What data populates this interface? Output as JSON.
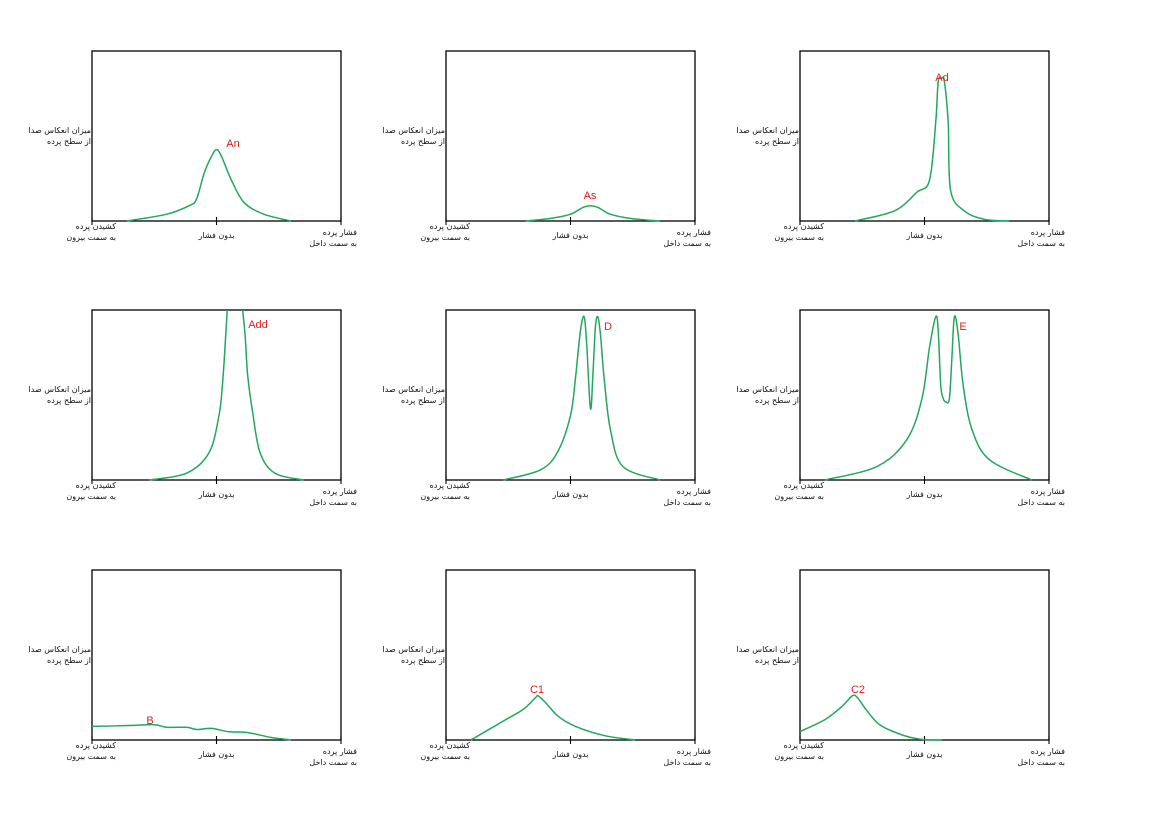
{
  "labels": {
    "y_axis": [
      "میزان انعکاس صدا",
      "از سطح پرده"
    ],
    "x_left": [
      "کشیدن پرده",
      "به سمت بیرون"
    ],
    "x_center": "بدون فشار",
    "x_right": [
      "فشار پرده",
      "به سمت داخل"
    ]
  },
  "colors": {
    "curve": "#22a85c",
    "label": "#e0201c",
    "frame": "#000000",
    "text": "#111111"
  },
  "panels": [
    {
      "peak_label": "An",
      "curve": [
        [
          0.14,
          0
        ],
        [
          0.3,
          0.04
        ],
        [
          0.39,
          0.09
        ],
        [
          0.42,
          0.13
        ],
        [
          0.45,
          0.28
        ],
        [
          0.48,
          0.38
        ],
        [
          0.5,
          0.42
        ],
        [
          0.52,
          0.38
        ],
        [
          0.56,
          0.24
        ],
        [
          0.61,
          0.11
        ],
        [
          0.69,
          0.04
        ],
        [
          0.8,
          0
        ]
      ]
    },
    {
      "peak_label": "As",
      "curve": [
        [
          0.32,
          0
        ],
        [
          0.42,
          0.015
        ],
        [
          0.5,
          0.04
        ],
        [
          0.55,
          0.08
        ],
        [
          0.58,
          0.09
        ],
        [
          0.61,
          0.08
        ],
        [
          0.66,
          0.04
        ],
        [
          0.74,
          0.015
        ],
        [
          0.86,
          0
        ]
      ]
    },
    {
      "peak_label": "Ad",
      "curve": [
        [
          0.22,
          0
        ],
        [
          0.38,
          0.06
        ],
        [
          0.47,
          0.17
        ],
        [
          0.52,
          0.24
        ],
        [
          0.545,
          0.58
        ],
        [
          0.555,
          0.82
        ],
        [
          0.57,
          0.84
        ],
        [
          0.58,
          0.82
        ],
        [
          0.595,
          0.58
        ],
        [
          0.605,
          0.18
        ],
        [
          0.66,
          0.06
        ],
        [
          0.74,
          0.01
        ],
        [
          0.84,
          0
        ]
      ]
    },
    {
      "peak_label": "Add",
      "curve": [
        [
          0.23,
          0
        ],
        [
          0.38,
          0.04
        ],
        [
          0.47,
          0.16
        ],
        [
          0.51,
          0.38
        ],
        [
          0.525,
          0.58
        ],
        [
          0.537,
          0.85
        ],
        [
          0.543,
          1
        ]
      ],
      "curve2": [
        [
          0.605,
          1
        ],
        [
          0.615,
          0.85
        ],
        [
          0.625,
          0.62
        ],
        [
          0.645,
          0.4
        ],
        [
          0.675,
          0.16
        ],
        [
          0.735,
          0.04
        ],
        [
          0.85,
          0
        ]
      ]
    },
    {
      "peak_label": "D",
      "curve": [
        [
          0.23,
          0
        ],
        [
          0.38,
          0.06
        ],
        [
          0.45,
          0.17
        ],
        [
          0.5,
          0.38
        ],
        [
          0.52,
          0.6
        ],
        [
          0.54,
          0.88
        ],
        [
          0.555,
          0.96
        ],
        [
          0.565,
          0.8
        ],
        [
          0.58,
          0.42
        ],
        [
          0.59,
          0.62
        ],
        [
          0.6,
          0.9
        ],
        [
          0.61,
          0.96
        ],
        [
          0.62,
          0.86
        ],
        [
          0.635,
          0.6
        ],
        [
          0.66,
          0.3
        ],
        [
          0.71,
          0.08
        ],
        [
          0.86,
          0
        ]
      ]
    },
    {
      "peak_label": "E",
      "curve": [
        [
          0.1,
          0
        ],
        [
          0.31,
          0.08
        ],
        [
          0.43,
          0.24
        ],
        [
          0.49,
          0.48
        ],
        [
          0.52,
          0.78
        ],
        [
          0.545,
          0.96
        ],
        [
          0.555,
          0.88
        ],
        [
          0.565,
          0.56
        ],
        [
          0.575,
          0.48
        ],
        [
          0.585,
          0.46
        ],
        [
          0.6,
          0.48
        ],
        [
          0.61,
          0.72
        ],
        [
          0.62,
          0.96
        ],
        [
          0.635,
          0.86
        ],
        [
          0.655,
          0.56
        ],
        [
          0.69,
          0.3
        ],
        [
          0.76,
          0.12
        ],
        [
          0.93,
          0
        ]
      ]
    },
    {
      "peak_label": "B",
      "curve": [
        [
          0,
          0.08
        ],
        [
          0.15,
          0.085
        ],
        [
          0.25,
          0.09
        ],
        [
          0.3,
          0.075
        ],
        [
          0.38,
          0.075
        ],
        [
          0.42,
          0.062
        ],
        [
          0.48,
          0.068
        ],
        [
          0.55,
          0.048
        ],
        [
          0.62,
          0.045
        ],
        [
          0.72,
          0.015
        ],
        [
          0.8,
          0
        ]
      ]
    },
    {
      "peak_label": "C1",
      "curve": [
        [
          0.1,
          0
        ],
        [
          0.24,
          0.12
        ],
        [
          0.31,
          0.18
        ],
        [
          0.36,
          0.25
        ],
        [
          0.37,
          0.26
        ],
        [
          0.4,
          0.22
        ],
        [
          0.45,
          0.14
        ],
        [
          0.52,
          0.08
        ],
        [
          0.64,
          0.025
        ],
        [
          0.76,
          0
        ]
      ]
    },
    {
      "peak_label": "C2",
      "curve": [
        [
          0,
          0.05
        ],
        [
          0.1,
          0.12
        ],
        [
          0.17,
          0.2
        ],
        [
          0.21,
          0.26
        ],
        [
          0.23,
          0.25
        ],
        [
          0.27,
          0.17
        ],
        [
          0.32,
          0.09
        ],
        [
          0.4,
          0.035
        ],
        [
          0.48,
          0.005
        ],
        [
          0.57,
          0
        ]
      ]
    }
  ]
}
